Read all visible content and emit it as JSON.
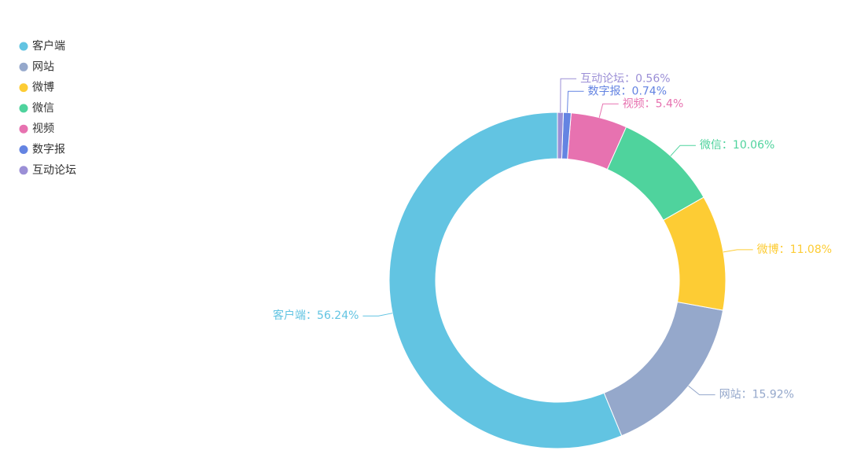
{
  "chart_data": {
    "type": "donut",
    "categories": [
      "客户端",
      "网站",
      "微博",
      "微信",
      "视频",
      "数字报",
      "互动论坛"
    ],
    "values": [
      56.24,
      15.92,
      11.08,
      10.06,
      5.4,
      0.74,
      0.56
    ],
    "value_labels": [
      "客户端：56.24%",
      "网站：15.92%",
      "微博：11.08%",
      "微信：10.06%",
      "视频：5.4%",
      "数字报：0.74%",
      "互动论坛：0.56%"
    ],
    "colors": [
      "#62c4e2",
      "#95a8cb",
      "#fdcc34",
      "#4fd39d",
      "#e772b0",
      "#6484e2",
      "#9b8fd6"
    ],
    "legend_position": "top-left"
  }
}
